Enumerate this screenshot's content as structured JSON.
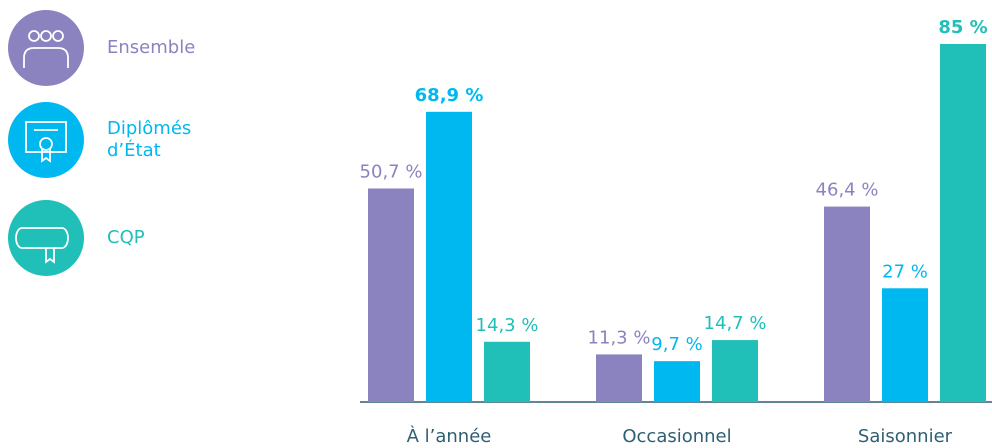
{
  "chart_data": {
    "type": "bar",
    "categories": [
      "À l’année",
      "Occasionnel",
      "Saisonnier"
    ],
    "series": [
      {
        "name": "Ensemble",
        "color": "#8a83c0",
        "values": [
          50.7,
          11.3,
          46.4
        ],
        "value_labels": [
          "50,7 %",
          "11,3 %",
          "46,4 %"
        ]
      },
      {
        "name": "Diplômés d’État",
        "color": "#00b8f0",
        "values": [
          68.9,
          9.7,
          27
        ],
        "value_labels": [
          "68,9 %",
          "9,7 %",
          "27 %"
        ]
      },
      {
        "name": "CQP",
        "color": "#20bfb8",
        "values": [
          14.3,
          14.7,
          85
        ],
        "value_labels": [
          "14,3 %",
          "14,7 %",
          "85 %"
        ]
      }
    ],
    "legend": "left"
  }
}
